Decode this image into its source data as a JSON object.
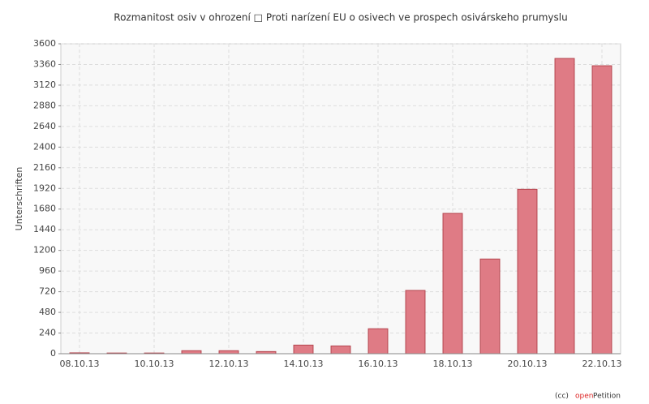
{
  "chart_data": {
    "type": "bar",
    "title": "Rozmanitost osiv v ohrození □ Proti narízení EU o osivech ve prospech osivárskeho prumyslu",
    "ylabel": "Unterschriften",
    "categories": [
      "08.10.13",
      null,
      "10.10.13",
      null,
      "12.10.13",
      null,
      "14.10.13",
      null,
      "16.10.13",
      null,
      "18.10.13",
      null,
      "20.10.13",
      null,
      "22.10.13"
    ],
    "values": [
      10,
      8,
      8,
      35,
      35,
      25,
      100,
      90,
      290,
      735,
      1630,
      1100,
      1910,
      3430,
      3345
    ],
    "color": "#df7b85",
    "ylim": [
      0,
      3600
    ],
    "yticks": [
      0,
      240,
      480,
      720,
      960,
      1200,
      1440,
      1680,
      1920,
      2160,
      2400,
      2640,
      2880,
      3120,
      3360,
      3600
    ],
    "grid": true
  },
  "footer": {
    "license": "(cc)",
    "brand_open": "open",
    "brand_petition": "Petition"
  }
}
